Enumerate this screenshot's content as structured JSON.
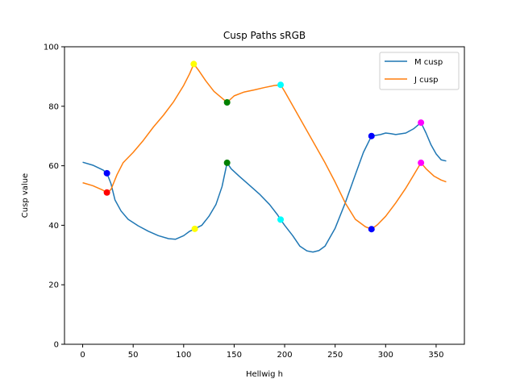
{
  "chart_data": {
    "type": "line",
    "title": "Cusp Paths sRGB",
    "xlabel": "Hellwig h",
    "ylabel": "Cusp value",
    "xlim": [
      -18,
      378
    ],
    "ylim": [
      0,
      100
    ],
    "xticks": [
      0,
      50,
      100,
      150,
      200,
      250,
      300,
      350
    ],
    "yticks": [
      0,
      20,
      40,
      60,
      80,
      100
    ],
    "grid": false,
    "legend": "top-right",
    "series": [
      {
        "name": "M cusp",
        "color": "#1f77b4",
        "points": [
          [
            0,
            61.2
          ],
          [
            10,
            60.2
          ],
          [
            20,
            58.6
          ],
          [
            24,
            57.5
          ],
          [
            28,
            54
          ],
          [
            32,
            48.5
          ],
          [
            38,
            44.8
          ],
          [
            45,
            42
          ],
          [
            55,
            39.8
          ],
          [
            65,
            38
          ],
          [
            75,
            36.5
          ],
          [
            85,
            35.5
          ],
          [
            92,
            35.3
          ],
          [
            100,
            36.5
          ],
          [
            106,
            38
          ],
          [
            111,
            38.8
          ],
          [
            118,
            40
          ],
          [
            125,
            43
          ],
          [
            132,
            47
          ],
          [
            138,
            53
          ],
          [
            143,
            61
          ],
          [
            147,
            59
          ],
          [
            155,
            56.5
          ],
          [
            165,
            53.5
          ],
          [
            175,
            50.5
          ],
          [
            185,
            47
          ],
          [
            193,
            43.5
          ],
          [
            196,
            41.9
          ],
          [
            200,
            40
          ],
          [
            208,
            36.5
          ],
          [
            215,
            33
          ],
          [
            222,
            31.4
          ],
          [
            228,
            31
          ],
          [
            234,
            31.5
          ],
          [
            240,
            33
          ],
          [
            250,
            39
          ],
          [
            260,
            47.5
          ],
          [
            270,
            57
          ],
          [
            278,
            64.5
          ],
          [
            286,
            70
          ],
          [
            295,
            70.5
          ],
          [
            300,
            71
          ],
          [
            305,
            70.8
          ],
          [
            310,
            70.5
          ],
          [
            320,
            71
          ],
          [
            328,
            72.5
          ],
          [
            335,
            74.5
          ],
          [
            340,
            71
          ],
          [
            345,
            67
          ],
          [
            350,
            64
          ],
          [
            355,
            62
          ],
          [
            360,
            61.6
          ]
        ]
      },
      {
        "name": "J cusp",
        "color": "#ff7f0e",
        "points": [
          [
            0,
            54.3
          ],
          [
            10,
            53.3
          ],
          [
            20,
            51.8
          ],
          [
            24,
            51
          ],
          [
            28,
            52
          ],
          [
            34,
            57
          ],
          [
            40,
            61
          ],
          [
            50,
            64.5
          ],
          [
            60,
            68.5
          ],
          [
            70,
            73
          ],
          [
            80,
            77
          ],
          [
            90,
            81.5
          ],
          [
            100,
            87
          ],
          [
            106,
            91
          ],
          [
            110,
            94.2
          ],
          [
            115,
            92
          ],
          [
            122,
            88.5
          ],
          [
            130,
            85
          ],
          [
            137,
            83
          ],
          [
            143,
            81.3
          ],
          [
            150,
            83.5
          ],
          [
            160,
            84.8
          ],
          [
            170,
            85.5
          ],
          [
            180,
            86.3
          ],
          [
            190,
            87
          ],
          [
            196,
            87.2
          ],
          [
            200,
            85
          ],
          [
            210,
            79
          ],
          [
            220,
            73
          ],
          [
            230,
            67
          ],
          [
            240,
            61
          ],
          [
            250,
            54.5
          ],
          [
            260,
            47.5
          ],
          [
            270,
            42
          ],
          [
            280,
            39.5
          ],
          [
            286,
            38.7
          ],
          [
            292,
            40.2
          ],
          [
            300,
            43
          ],
          [
            310,
            47.5
          ],
          [
            320,
            52.5
          ],
          [
            328,
            57
          ],
          [
            335,
            61
          ],
          [
            340,
            59
          ],
          [
            348,
            56.5
          ],
          [
            355,
            55.2
          ],
          [
            360,
            54.6
          ]
        ]
      }
    ],
    "markers": [
      {
        "x": 24,
        "y": 57.5,
        "color": "#0000ff"
      },
      {
        "x": 24,
        "y": 51,
        "color": "#ff0000"
      },
      {
        "x": 110,
        "y": 94.2,
        "color": "#ffff00"
      },
      {
        "x": 111,
        "y": 38.8,
        "color": "#ffff00"
      },
      {
        "x": 143,
        "y": 81.3,
        "color": "#008000"
      },
      {
        "x": 143,
        "y": 61,
        "color": "#008000"
      },
      {
        "x": 196,
        "y": 87.2,
        "color": "#00ffff"
      },
      {
        "x": 196,
        "y": 41.9,
        "color": "#00ffff"
      },
      {
        "x": 286,
        "y": 70,
        "color": "#0000ff"
      },
      {
        "x": 286,
        "y": 38.7,
        "color": "#0000ff"
      },
      {
        "x": 335,
        "y": 74.5,
        "color": "#ff00ff"
      },
      {
        "x": 335,
        "y": 61,
        "color": "#ff00ff"
      }
    ]
  }
}
